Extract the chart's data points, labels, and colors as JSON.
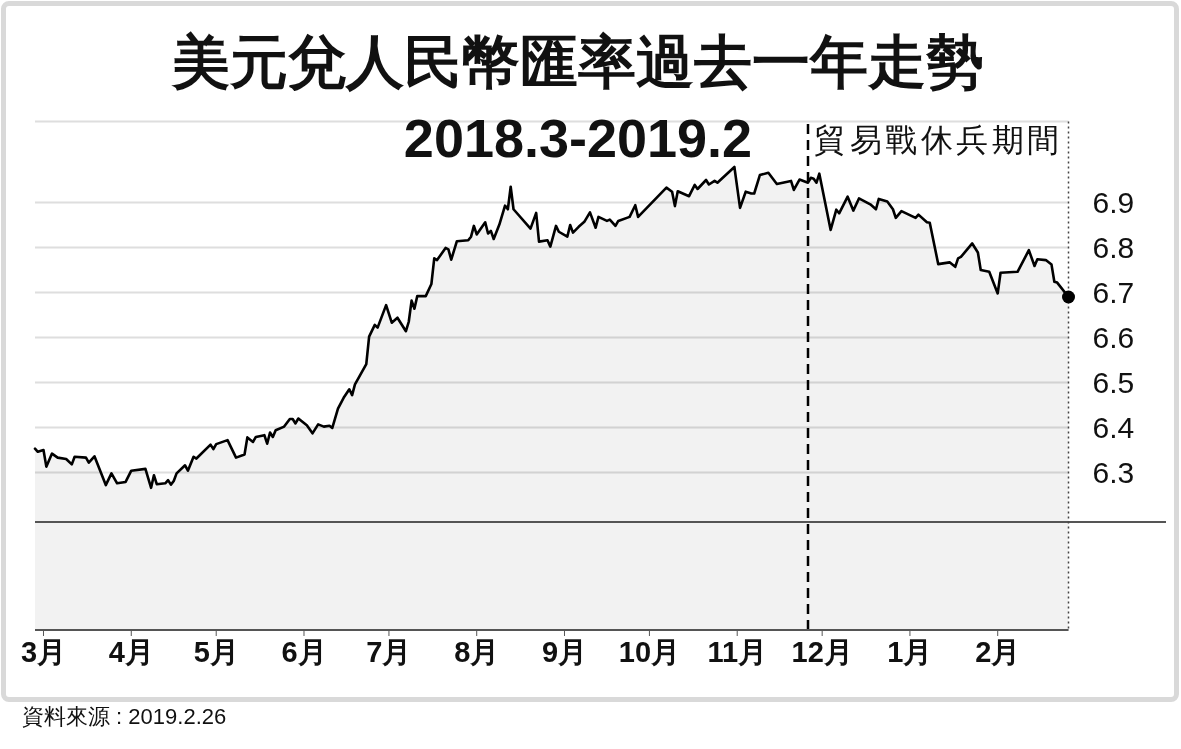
{
  "chart_data": {
    "type": "area",
    "title": "美元兌人民幣匯率過去一年走勢",
    "subtitle": "2018.3-2019.2",
    "x": [
      "2018-02-26",
      "2018-02-27",
      "2018-03-01",
      "2018-03-02",
      "2018-03-04",
      "2018-03-06",
      "2018-03-09",
      "2018-03-11",
      "2018-03-12",
      "2018-03-16",
      "2018-03-17",
      "2018-03-19",
      "2018-03-23",
      "2018-03-25",
      "2018-03-27",
      "2018-03-30",
      "2018-04-01",
      "2018-04-06",
      "2018-04-08",
      "2018-04-09",
      "2018-04-10",
      "2018-04-13",
      "2018-04-14",
      "2018-04-15",
      "2018-04-16",
      "2018-04-17",
      "2018-04-20",
      "2018-04-21",
      "2018-04-23",
      "2018-04-24",
      "2018-04-29",
      "2018-04-30",
      "2018-05-01",
      "2018-05-05",
      "2018-05-08",
      "2018-05-11",
      "2018-05-12",
      "2018-05-14",
      "2018-05-15",
      "2018-05-18",
      "2018-05-19",
      "2018-05-20",
      "2018-05-21",
      "2018-05-22",
      "2018-05-25",
      "2018-05-27",
      "2018-05-28",
      "2018-05-29",
      "2018-05-30",
      "2018-06-02",
      "2018-06-04",
      "2018-06-06",
      "2018-06-08",
      "2018-06-10",
      "2018-06-11",
      "2018-06-13",
      "2018-06-15",
      "2018-06-17",
      "2018-06-18",
      "2018-06-19",
      "2018-06-23",
      "2018-06-24",
      "2018-06-26",
      "2018-06-27",
      "2018-06-30",
      "2018-07-02",
      "2018-07-04",
      "2018-07-07",
      "2018-07-08",
      "2018-07-09",
      "2018-07-10",
      "2018-07-11",
      "2018-07-14",
      "2018-07-16",
      "2018-07-17",
      "2018-07-18",
      "2018-07-21",
      "2018-07-22",
      "2018-07-23",
      "2018-07-25",
      "2018-07-29",
      "2018-07-30",
      "2018-07-31",
      "2018-08-01",
      "2018-08-04",
      "2018-08-05",
      "2018-08-06",
      "2018-08-07",
      "2018-08-09",
      "2018-08-11",
      "2018-08-12",
      "2018-08-13",
      "2018-08-14",
      "2018-08-20",
      "2018-08-22",
      "2018-08-23",
      "2018-08-26",
      "2018-08-27",
      "2018-08-29",
      "2018-08-30",
      "2018-09-02",
      "2018-09-03",
      "2018-09-04",
      "2018-09-06",
      "2018-09-08",
      "2018-09-10",
      "2018-09-12",
      "2018-09-13",
      "2018-09-16",
      "2018-09-17",
      "2018-09-19",
      "2018-09-20",
      "2018-09-24",
      "2018-09-26",
      "2018-09-27",
      "2018-10-07",
      "2018-10-09",
      "2018-10-10",
      "2018-10-11",
      "2018-10-15",
      "2018-10-17",
      "2018-10-18",
      "2018-10-21",
      "2018-10-22",
      "2018-10-24",
      "2018-10-25",
      "2018-10-31",
      "2018-11-02",
      "2018-11-04",
      "2018-11-06",
      "2018-11-07",
      "2018-11-09",
      "2018-11-12",
      "2018-11-15",
      "2018-11-20",
      "2018-11-21",
      "2018-11-23",
      "2018-11-26",
      "2018-11-27",
      "2018-11-28",
      "2018-11-29",
      "2018-11-30",
      "2018-12-04",
      "2018-12-06",
      "2018-12-07",
      "2018-12-10",
      "2018-12-12",
      "2018-12-14",
      "2018-12-18",
      "2018-12-20",
      "2018-12-21",
      "2018-12-24",
      "2018-12-26",
      "2018-12-27",
      "2018-12-29",
      "2019-01-03",
      "2019-01-04",
      "2019-01-07",
      "2019-01-08",
      "2019-01-11",
      "2019-01-15",
      "2019-01-17",
      "2019-01-18",
      "2019-01-19",
      "2019-01-23",
      "2019-01-25",
      "2019-01-26",
      "2019-01-29",
      "2019-02-01",
      "2019-02-02",
      "2019-02-08",
      "2019-02-12",
      "2019-02-14",
      "2019-02-15",
      "2019-02-18",
      "2019-02-20",
      "2019-02-21",
      "2019-02-22",
      "2019-02-26"
    ],
    "series": [
      {
        "color": "#000000",
        "values": [
          6.353,
          6.346,
          6.35,
          6.313,
          6.342,
          6.333,
          6.33,
          6.318,
          6.335,
          6.333,
          6.322,
          6.336,
          6.272,
          6.298,
          6.276,
          6.279,
          6.304,
          6.308,
          6.266,
          6.294,
          6.274,
          6.276,
          6.283,
          6.273,
          6.281,
          6.298,
          6.316,
          6.304,
          6.335,
          6.331,
          6.362,
          6.352,
          6.363,
          6.372,
          6.333,
          6.34,
          6.378,
          6.368,
          6.379,
          6.383,
          6.364,
          6.389,
          6.379,
          6.394,
          6.402,
          6.419,
          6.419,
          6.409,
          6.42,
          6.405,
          6.387,
          6.407,
          6.402,
          6.404,
          6.399,
          6.442,
          6.466,
          6.485,
          6.472,
          6.496,
          6.541,
          6.602,
          6.628,
          6.622,
          6.672,
          6.633,
          6.644,
          6.614,
          6.635,
          6.682,
          6.664,
          6.692,
          6.692,
          6.719,
          6.776,
          6.772,
          6.799,
          6.796,
          6.773,
          6.814,
          6.816,
          6.824,
          6.848,
          6.829,
          6.856,
          6.831,
          6.837,
          6.819,
          6.851,
          6.893,
          6.885,
          6.935,
          6.885,
          6.842,
          6.877,
          6.813,
          6.816,
          6.802,
          6.848,
          6.835,
          6.824,
          6.85,
          6.833,
          6.846,
          6.857,
          6.878,
          6.844,
          6.868,
          6.859,
          6.862,
          6.848,
          6.859,
          6.868,
          6.894,
          6.868,
          6.933,
          6.924,
          6.892,
          6.925,
          6.914,
          6.939,
          6.93,
          6.95,
          6.94,
          6.948,
          6.944,
          6.979,
          6.888,
          6.924,
          6.92,
          6.92,
          6.961,
          6.966,
          6.941,
          6.948,
          6.928,
          6.951,
          6.944,
          6.955,
          6.953,
          6.944,
          6.964,
          6.839,
          6.884,
          6.876,
          6.913,
          6.882,
          6.909,
          6.896,
          6.885,
          6.908,
          6.902,
          6.885,
          6.866,
          6.881,
          6.866,
          6.873,
          6.856,
          6.855,
          6.763,
          6.767,
          6.757,
          6.776,
          6.779,
          6.809,
          6.789,
          6.75,
          6.746,
          6.698,
          6.744,
          6.746,
          6.794,
          6.759,
          6.774,
          6.772,
          6.762,
          6.724,
          6.722,
          6.69
        ]
      },
      {
        "type": "scatter",
        "color": "#000000",
        "marker": "circle",
        "x": [
          "2019-02-26"
        ],
        "values": [
          6.69
        ]
      }
    ],
    "xlim": [
      "2018-02-26",
      "2019-02-26"
    ],
    "xticks": [
      {
        "value": "2018-03-01",
        "label": "3月"
      },
      {
        "value": "2018-04-01",
        "label": "4月"
      },
      {
        "value": "2018-05-01",
        "label": "5月"
      },
      {
        "value": "2018-06-01",
        "label": "6月"
      },
      {
        "value": "2018-07-01",
        "label": "7月"
      },
      {
        "value": "2018-08-01",
        "label": "8月"
      },
      {
        "value": "2018-09-01",
        "label": "9月"
      },
      {
        "value": "2018-10-01",
        "label": "10月"
      },
      {
        "value": "2018-11-01",
        "label": "11月"
      },
      {
        "value": "2018-12-01",
        "label": "12月"
      },
      {
        "value": "2019-01-01",
        "label": "1月"
      },
      {
        "value": "2019-02-01",
        "label": "2月"
      }
    ],
    "ylim": [
      5.95,
      7.08
    ],
    "yticks": [
      6.3,
      6.4,
      6.5,
      6.6,
      6.7,
      6.8,
      6.9
    ],
    "grid": "y",
    "ref_lines": [
      {
        "axis": "x",
        "value": "2018-11-26",
        "label": "貿易戰休兵期間",
        "line_style": "dashed",
        "color": "#000000"
      },
      {
        "axis": "y",
        "value": 6.19,
        "label": null,
        "color": "#555555"
      }
    ],
    "annotations": [
      "資料來源 : 2019.2.26"
    ]
  }
}
